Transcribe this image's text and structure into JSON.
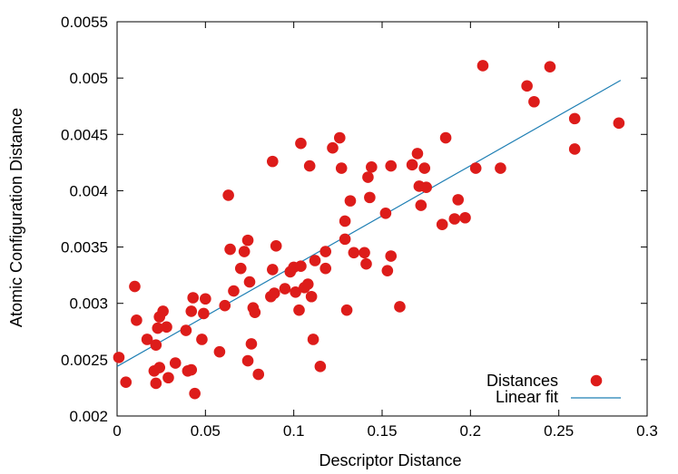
{
  "chart_data": {
    "type": "scatter",
    "title": "",
    "xlabel": "Descriptor Distance",
    "ylabel": "Atomic Configuration Distance",
    "xlim": [
      0,
      0.3
    ],
    "ylim": [
      0.002,
      0.0055
    ],
    "x_ticks": [
      {
        "value": 0,
        "label": "0"
      },
      {
        "value": 0.05,
        "label": "0.05"
      },
      {
        "value": 0.1,
        "label": "0.1"
      },
      {
        "value": 0.15,
        "label": "0.15"
      },
      {
        "value": 0.2,
        "label": "0.2"
      },
      {
        "value": 0.25,
        "label": "0.25"
      },
      {
        "value": 0.3,
        "label": "0.3"
      }
    ],
    "y_ticks": [
      {
        "value": 0.002,
        "label": "0.002"
      },
      {
        "value": 0.0025,
        "label": "0.0025"
      },
      {
        "value": 0.003,
        "label": "0.003"
      },
      {
        "value": 0.0035,
        "label": "0.0035"
      },
      {
        "value": 0.004,
        "label": "0.004"
      },
      {
        "value": 0.0045,
        "label": "0.0045"
      },
      {
        "value": 0.005,
        "label": "0.005"
      },
      {
        "value": 0.0055,
        "label": "0.0055"
      }
    ],
    "grid": false,
    "legend_position": "bottom-right",
    "series": [
      {
        "name": "Distances",
        "kind": "scatter",
        "color": "#dd1c1a",
        "points": [
          [
            0.001,
            0.00252
          ],
          [
            0.005,
            0.0023
          ],
          [
            0.01,
            0.00315
          ],
          [
            0.011,
            0.00285
          ],
          [
            0.017,
            0.00268
          ],
          [
            0.021,
            0.0024
          ],
          [
            0.022,
            0.00229
          ],
          [
            0.022,
            0.00263
          ],
          [
            0.023,
            0.00278
          ],
          [
            0.024,
            0.00243
          ],
          [
            0.024,
            0.00288
          ],
          [
            0.026,
            0.00293
          ],
          [
            0.028,
            0.00279
          ],
          [
            0.029,
            0.00234
          ],
          [
            0.033,
            0.00247
          ],
          [
            0.039,
            0.00276
          ],
          [
            0.04,
            0.0024
          ],
          [
            0.042,
            0.00241
          ],
          [
            0.042,
            0.00293
          ],
          [
            0.043,
            0.00305
          ],
          [
            0.044,
            0.0022
          ],
          [
            0.048,
            0.00268
          ],
          [
            0.049,
            0.00291
          ],
          [
            0.05,
            0.00304
          ],
          [
            0.058,
            0.00257
          ],
          [
            0.061,
            0.00298
          ],
          [
            0.063,
            0.00396
          ],
          [
            0.064,
            0.00348
          ],
          [
            0.066,
            0.00311
          ],
          [
            0.07,
            0.00331
          ],
          [
            0.072,
            0.00346
          ],
          [
            0.074,
            0.00249
          ],
          [
            0.074,
            0.00356
          ],
          [
            0.075,
            0.00319
          ],
          [
            0.076,
            0.00264
          ],
          [
            0.077,
            0.00296
          ],
          [
            0.078,
            0.00292
          ],
          [
            0.08,
            0.00237
          ],
          [
            0.087,
            0.00306
          ],
          [
            0.088,
            0.00426
          ],
          [
            0.088,
            0.0033
          ],
          [
            0.089,
            0.00309
          ],
          [
            0.09,
            0.00351
          ],
          [
            0.095,
            0.00313
          ],
          [
            0.098,
            0.00328
          ],
          [
            0.1,
            0.00332
          ],
          [
            0.101,
            0.0031
          ],
          [
            0.103,
            0.00294
          ],
          [
            0.104,
            0.00442
          ],
          [
            0.104,
            0.00333
          ],
          [
            0.106,
            0.00314
          ],
          [
            0.108,
            0.00317
          ],
          [
            0.109,
            0.00422
          ],
          [
            0.11,
            0.00306
          ],
          [
            0.111,
            0.00268
          ],
          [
            0.112,
            0.00338
          ],
          [
            0.115,
            0.00244
          ],
          [
            0.118,
            0.00346
          ],
          [
            0.118,
            0.00331
          ],
          [
            0.122,
            0.00438
          ],
          [
            0.126,
            0.00447
          ],
          [
            0.127,
            0.0042
          ],
          [
            0.129,
            0.00373
          ],
          [
            0.129,
            0.00357
          ],
          [
            0.13,
            0.00294
          ],
          [
            0.132,
            0.00391
          ],
          [
            0.134,
            0.00345
          ],
          [
            0.14,
            0.00345
          ],
          [
            0.141,
            0.00335
          ],
          [
            0.142,
            0.00412
          ],
          [
            0.143,
            0.00394
          ],
          [
            0.144,
            0.00421
          ],
          [
            0.152,
            0.0038
          ],
          [
            0.153,
            0.00329
          ],
          [
            0.155,
            0.00342
          ],
          [
            0.155,
            0.00422
          ],
          [
            0.16,
            0.00297
          ],
          [
            0.167,
            0.00423
          ],
          [
            0.17,
            0.00433
          ],
          [
            0.171,
            0.00404
          ],
          [
            0.172,
            0.00387
          ],
          [
            0.174,
            0.0042
          ],
          [
            0.175,
            0.00403
          ],
          [
            0.184,
            0.0037
          ],
          [
            0.186,
            0.00447
          ],
          [
            0.191,
            0.00375
          ],
          [
            0.193,
            0.00392
          ],
          [
            0.197,
            0.00376
          ],
          [
            0.203,
            0.0042
          ],
          [
            0.207,
            0.00511
          ],
          [
            0.217,
            0.0042
          ],
          [
            0.232,
            0.00493
          ],
          [
            0.236,
            0.00479
          ],
          [
            0.245,
            0.0051
          ],
          [
            0.259,
            0.00464
          ],
          [
            0.259,
            0.00437
          ],
          [
            0.284,
            0.0046
          ]
        ]
      },
      {
        "name": "Linear fit",
        "kind": "line",
        "color": "#1f7fb4",
        "points": [
          [
            0,
            0.00244
          ],
          [
            0.285,
            0.00498
          ]
        ]
      }
    ]
  }
}
